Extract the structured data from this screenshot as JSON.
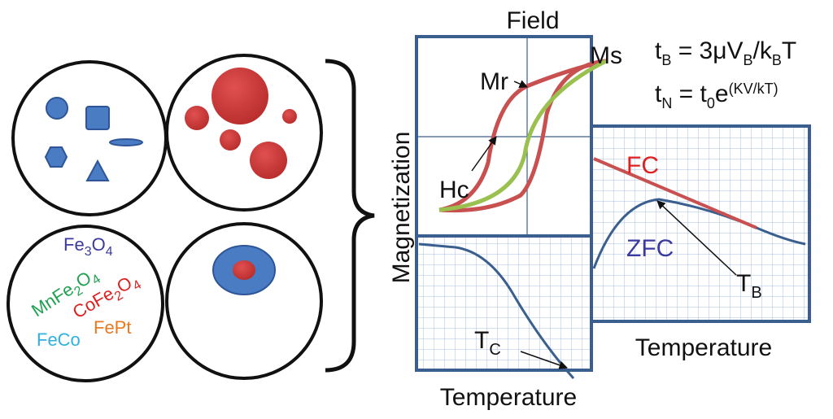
{
  "particles": {
    "compositions": {
      "fe3o4": [
        "Fe",
        "3",
        "O",
        "4"
      ],
      "mnfe2o4": [
        "MnFe",
        "2",
        "O",
        "4"
      ],
      "cofe2o4": [
        "CoFe",
        "2",
        "O",
        "4"
      ],
      "fepct": "FePt",
      "feco": "FeCo"
    }
  },
  "hysteresis": {
    "title": "Field",
    "y_label": "Magnetization",
    "ms": "Ms",
    "mr": "Mr",
    "hc": "Hc"
  },
  "tc_plot": {
    "x_label": "Temperature",
    "tc": [
      "T",
      "C"
    ]
  },
  "fc_zfc_plot": {
    "x_label": "Temperature",
    "fc": "FC",
    "zfc": "ZFC",
    "tb": [
      "T",
      "B"
    ]
  },
  "equations": {
    "tb": [
      "t",
      "B",
      " = 3μV",
      "B",
      "/k",
      "B",
      "T"
    ],
    "tn": [
      "t",
      "N",
      " = t",
      "0",
      "e",
      "(KV/kT)"
    ]
  }
}
